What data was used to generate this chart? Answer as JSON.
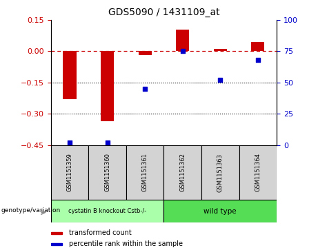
{
  "title": "GDS5090 / 1431109_at",
  "samples": [
    "GSM1151359",
    "GSM1151360",
    "GSM1151361",
    "GSM1151362",
    "GSM1151363",
    "GSM1151364"
  ],
  "transformed_count": [
    -0.23,
    -0.335,
    -0.02,
    0.105,
    0.01,
    0.045
  ],
  "percentile_rank": [
    2,
    2,
    45,
    75,
    52,
    68
  ],
  "ylim_left": [
    -0.45,
    0.15
  ],
  "ylim_right": [
    0,
    100
  ],
  "yticks_left": [
    0.15,
    0.0,
    -0.15,
    -0.3,
    -0.45
  ],
  "yticks_right": [
    100,
    75,
    50,
    25,
    0
  ],
  "hlines": [
    -0.15,
    -0.3
  ],
  "group1_label": "cystatin B knockout Cstb-/-",
  "group2_label": "wild type",
  "group1_count": 3,
  "group2_count": 3,
  "group1_color": "#aaffaa",
  "group2_color": "#55dd55",
  "bar_color": "#CC0000",
  "point_color": "#0000CC",
  "ref_line_color": "#CC0000",
  "legend_label_bar": "transformed count",
  "legend_label_point": "percentile rank within the sample",
  "genotype_label": "genotype/variation",
  "background_color": "#ffffff",
  "panel_color": "#d3d3d3",
  "bar_width": 0.35
}
